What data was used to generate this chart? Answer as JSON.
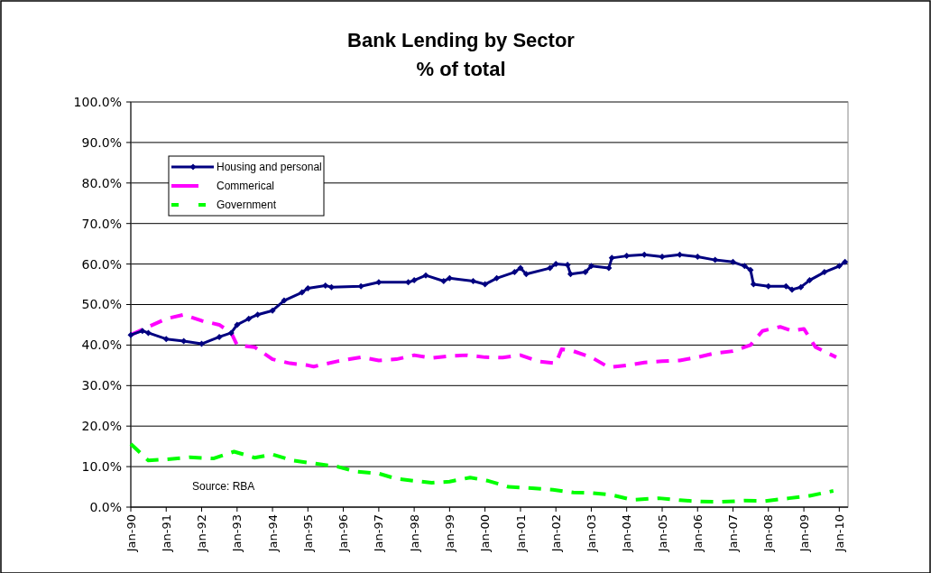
{
  "chart_data": {
    "type": "line",
    "title": "Bank Lending by Sector",
    "subtitle": "% of total",
    "xlim": [
      "1990-01",
      "2010-04"
    ],
    "xticks": [
      {
        "value": "1990-01",
        "label": "Jan-90"
      },
      {
        "value": "1991-01",
        "label": "Jan-91"
      },
      {
        "value": "1992-01",
        "label": "Jan-92"
      },
      {
        "value": "1993-01",
        "label": "Jan-93"
      },
      {
        "value": "1994-01",
        "label": "Jan-94"
      },
      {
        "value": "1995-01",
        "label": "Jan-95"
      },
      {
        "value": "1996-01",
        "label": "Jan-96"
      },
      {
        "value": "1997-01",
        "label": "Jan-97"
      },
      {
        "value": "1998-01",
        "label": "Jan-98"
      },
      {
        "value": "1999-01",
        "label": "Jan-99"
      },
      {
        "value": "2000-01",
        "label": "Jan-00"
      },
      {
        "value": "2001-01",
        "label": "Jan-01"
      },
      {
        "value": "2002-01",
        "label": "Jan-02"
      },
      {
        "value": "2003-01",
        "label": "Jan-03"
      },
      {
        "value": "2004-01",
        "label": "Jan-04"
      },
      {
        "value": "2005-01",
        "label": "Jan-05"
      },
      {
        "value": "2006-01",
        "label": "Jan-06"
      },
      {
        "value": "2007-01",
        "label": "Jan-07"
      },
      {
        "value": "2008-01",
        "label": "Jan-08"
      },
      {
        "value": "2009-01",
        "label": "Jan-09"
      },
      {
        "value": "2010-01",
        "label": "Jan-10"
      }
    ],
    "ylim": [
      0,
      100
    ],
    "yticks": [
      {
        "value": 0,
        "label": "0.0%"
      },
      {
        "value": 10,
        "label": "10.0%"
      },
      {
        "value": 20,
        "label": "20.0%"
      },
      {
        "value": 30,
        "label": "30.0%"
      },
      {
        "value": 40,
        "label": "40.0%"
      },
      {
        "value": 50,
        "label": "50.0%"
      },
      {
        "value": 60,
        "label": "60.0%"
      },
      {
        "value": 70,
        "label": "70.0%"
      },
      {
        "value": 80,
        "label": "80.0%"
      },
      {
        "value": 90,
        "label": "90.0%"
      },
      {
        "value": 100,
        "label": "100.0%"
      }
    ],
    "grid": "y",
    "legend": "top left",
    "annotations": [
      "Source: RBA"
    ],
    "series": [
      {
        "name": "Housing and personal",
        "color": "#000080",
        "marker": "diamond",
        "line_style": "solid",
        "x": [
          "1990-01",
          "1990-05",
          "1990-07",
          "1991-01",
          "1991-07",
          "1992-01",
          "1992-07",
          "1992-11",
          "1993-01",
          "1993-05",
          "1993-08",
          "1994-01",
          "1994-05",
          "1994-11",
          "1995-01",
          "1995-07",
          "1995-09",
          "1996-07",
          "1997-01",
          "1997-11",
          "1998-01",
          "1998-05",
          "1998-11",
          "1999-01",
          "1999-09",
          "2000-01",
          "2000-05",
          "2000-11",
          "2001-01",
          "2001-03",
          "2001-11",
          "2002-01",
          "2002-05",
          "2002-06",
          "2002-11",
          "2003-01",
          "2003-07",
          "2003-08",
          "2004-01",
          "2004-07",
          "2005-01",
          "2005-07",
          "2006-01",
          "2006-07",
          "2007-01",
          "2007-05",
          "2007-07",
          "2007-08",
          "2008-01",
          "2008-07",
          "2008-09",
          "2008-12",
          "2009-03",
          "2009-08",
          "2010-01",
          "2010-03"
        ],
        "values": [
          42.5,
          43.5,
          43,
          41.5,
          41,
          40.3,
          42,
          43,
          45,
          46.5,
          47.5,
          48.5,
          51,
          53,
          54,
          54.7,
          54.3,
          54.5,
          55.5,
          55.5,
          56,
          57.2,
          55.8,
          56.5,
          55.8,
          55,
          56.5,
          58,
          59,
          57.5,
          59,
          60,
          59.8,
          57.5,
          58,
          59.5,
          59,
          61.5,
          62,
          62.3,
          61.8,
          62.3,
          61.8,
          61,
          60.5,
          59.5,
          58.5,
          55,
          54.5,
          54.5,
          53.7,
          54.3,
          56,
          58,
          59.5,
          60.5
        ]
      },
      {
        "name": "Commerical",
        "color": "#ff00ff",
        "marker": "none",
        "line_style": "dashed",
        "x": [
          "1990-01",
          "1990-07",
          "1991-01",
          "1991-07",
          "1992-01",
          "1992-07",
          "1992-11",
          "1993-01",
          "1993-07",
          "1994-01",
          "1994-07",
          "1995-01",
          "1995-03",
          "1995-11",
          "1996-07",
          "1997-01",
          "1997-07",
          "1998-01",
          "1998-07",
          "1999-01",
          "1999-07",
          "2000-01",
          "2000-07",
          "2001-01",
          "2001-07",
          "2002-01",
          "2002-03",
          "2002-07",
          "2003-01",
          "2003-07",
          "2004-01",
          "2004-07",
          "2005-01",
          "2005-07",
          "2006-01",
          "2006-07",
          "2007-01",
          "2007-07",
          "2007-11",
          "2008-05",
          "2008-09",
          "2009-01",
          "2009-05",
          "2009-12"
        ],
        "values": [
          42.5,
          44.5,
          46.5,
          47.5,
          46,
          45,
          43,
          40,
          39.5,
          36.5,
          35.5,
          35,
          34.7,
          36,
          37,
          36.2,
          36.5,
          37.5,
          36.8,
          37.3,
          37.5,
          37,
          36.9,
          37.5,
          36,
          35.5,
          39,
          38.5,
          37,
          34.5,
          35,
          35.7,
          36,
          36.2,
          37,
          38,
          38.5,
          40,
          43.5,
          44.5,
          43.5,
          44,
          39.5,
          37
        ]
      },
      {
        "name": "Government",
        "color": "#00ff00",
        "marker": "none",
        "line_style": "dashed",
        "x": [
          "1990-01",
          "1990-07",
          "1991-01",
          "1991-09",
          "1992-05",
          "1992-12",
          "1993-07",
          "1994-01",
          "1994-08",
          "1995-03",
          "1995-11",
          "1996-05",
          "1997-01",
          "1997-07",
          "1998-01",
          "1998-07",
          "1999-01",
          "1999-08",
          "2000-02",
          "2000-09",
          "2001-05",
          "2001-12",
          "2002-07",
          "2003-01",
          "2003-08",
          "2004-03",
          "2004-12",
          "2005-07",
          "2006-02",
          "2006-09",
          "2007-05",
          "2007-12",
          "2008-08",
          "2009-03",
          "2009-11"
        ],
        "values": [
          15.6,
          11.5,
          11.8,
          12.3,
          12,
          13.7,
          12.2,
          13,
          11.5,
          10.8,
          10,
          8.8,
          8.3,
          7,
          6.5,
          6,
          6.3,
          7.3,
          6.5,
          5,
          4.7,
          4.3,
          3.6,
          3.5,
          3,
          1.8,
          2.2,
          1.7,
          1.4,
          1.3,
          1.6,
          1.5,
          2.2,
          2.8,
          4
        ]
      }
    ]
  }
}
